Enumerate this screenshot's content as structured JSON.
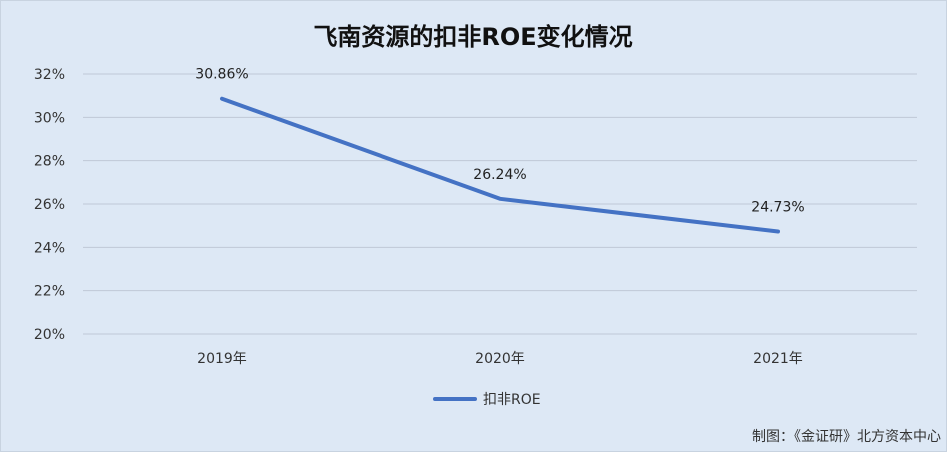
{
  "chart_data": {
    "type": "line",
    "title": "飞南资源的扣非ROE变化情况",
    "categories": [
      "2019年",
      "2020年",
      "2021年"
    ],
    "series": [
      {
        "name": "扣非ROE",
        "values": [
          30.86,
          26.24,
          24.73
        ],
        "labels": [
          "30.86%",
          "26.24%",
          "24.73%"
        ],
        "color": "#4472c4"
      }
    ],
    "ylim": [
      20,
      32
    ],
    "yticks": [
      20,
      22,
      24,
      26,
      28,
      30,
      32
    ],
    "ytick_labels": [
      "20%",
      "22%",
      "24%",
      "26%",
      "28%",
      "30%",
      "32%"
    ],
    "grid": true,
    "legend_position": "bottom"
  },
  "source_note": "制图：《金证研》北方资本中心"
}
